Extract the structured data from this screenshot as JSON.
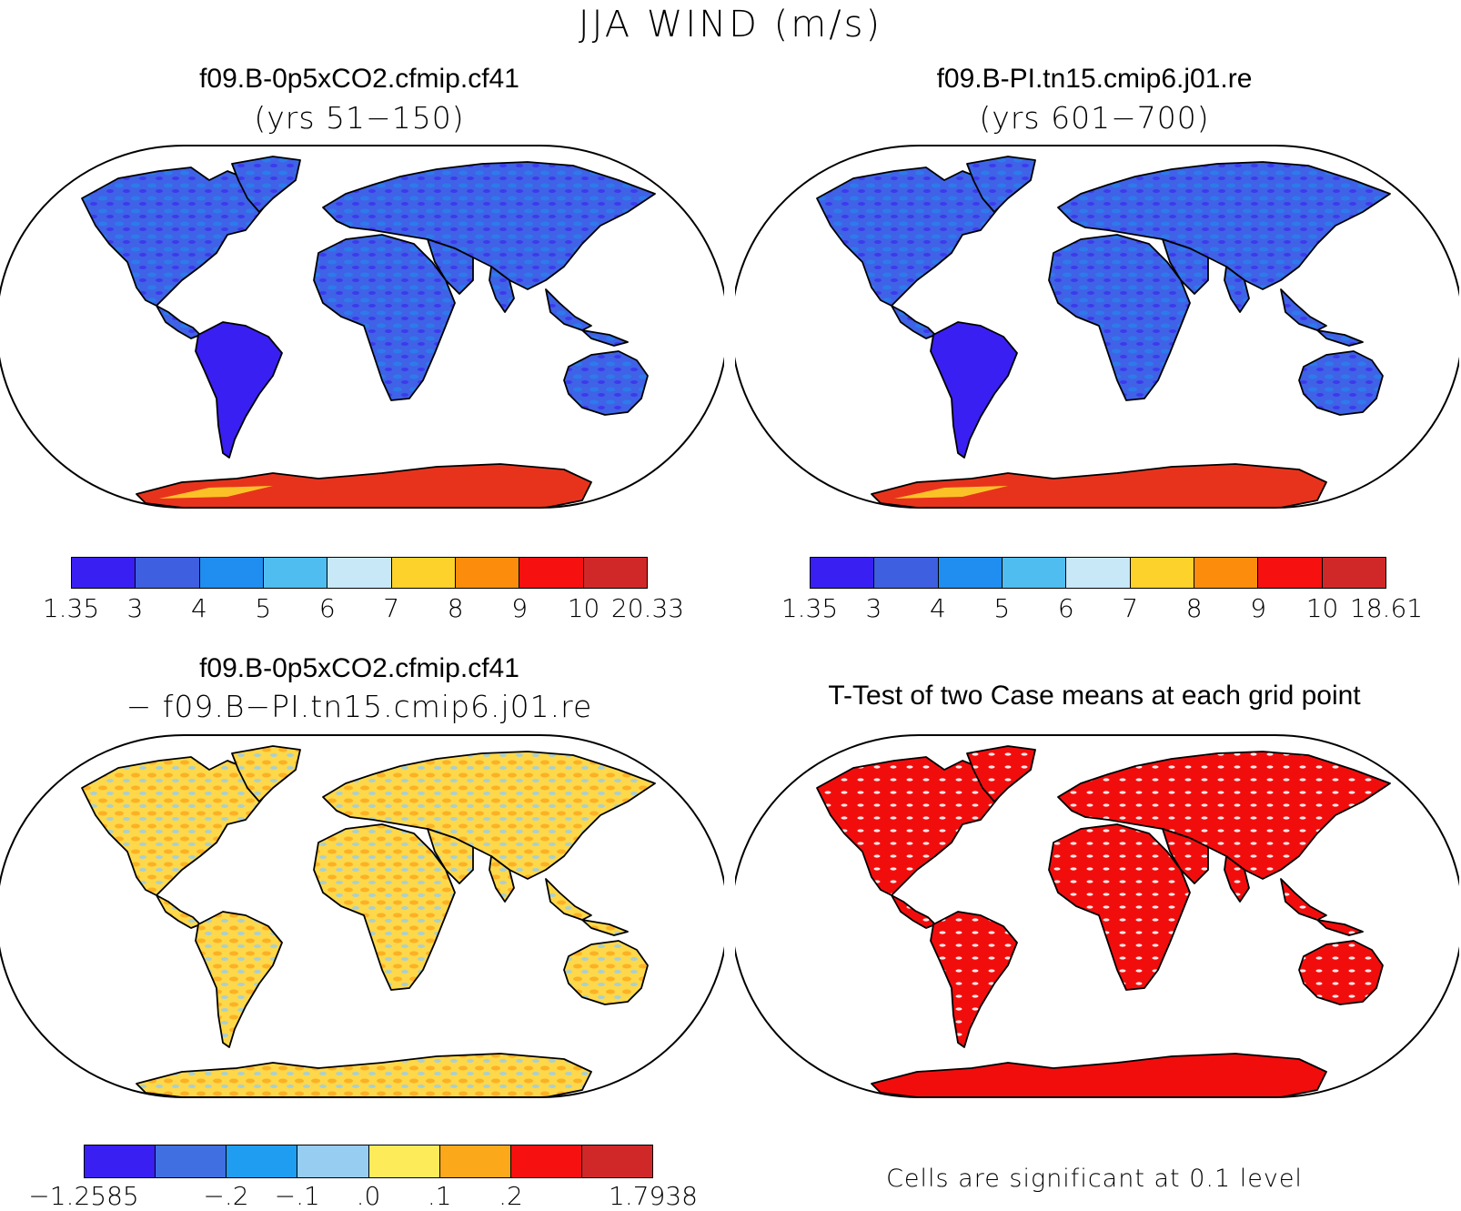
{
  "title": "JJA WIND (m/s)",
  "panels": [
    {
      "title": "f09.B-0p5xCO2.cfmip.cf41",
      "subtitle": "(yrs 51−150)",
      "scheme": "wind",
      "colorbar": {
        "colors": [
          "#3a1ff2",
          "#3d5fe0",
          "#1f8ef0",
          "#4fbdf0",
          "#c8e8f8",
          "#fdd22a",
          "#fb8c0c",
          "#f61010",
          "#d02828"
        ],
        "labels": [
          "1.35",
          "3",
          "4",
          "5",
          "6",
          "7",
          "8",
          "9",
          "10",
          "20.33"
        ]
      }
    },
    {
      "title": "f09.B-PI.tn15.cmip6.j01.re",
      "subtitle": "(yrs 601−700)",
      "scheme": "wind",
      "colorbar": {
        "colors": [
          "#3a1ff2",
          "#3d5fe0",
          "#1f8ef0",
          "#4fbdf0",
          "#c8e8f8",
          "#fdd22a",
          "#fb8c0c",
          "#f61010",
          "#d02828"
        ],
        "labels": [
          "1.35",
          "3",
          "4",
          "5",
          "6",
          "7",
          "8",
          "9",
          "10",
          "18.61"
        ]
      }
    },
    {
      "title": "f09.B-0p5xCO2.cfmip.cf41",
      "subtitle": "− f09.B−PI.tn15.cmip6.j01.re",
      "scheme": "diff",
      "colorbar": {
        "colors": [
          "#3a1ff2",
          "#3f6fe0",
          "#1f9df0",
          "#96cdf0",
          "#fdeb5a",
          "#fba81a",
          "#f61010",
          "#d02828"
        ],
        "labels": [
          "−1.2585",
          "",
          "−.2",
          "−.1",
          ".0",
          ".1",
          ".2",
          "",
          "1.7938"
        ]
      }
    },
    {
      "title": "T-Test of two Case means at each grid point",
      "subtitle": "",
      "scheme": "ttest",
      "note": "Cells are significant at 0.1 level"
    }
  ],
  "colors": {
    "land_wind": "#3f62e6",
    "land_wind_dark": "#3a1ff2",
    "antarctica": "#e8331c",
    "land_diff": "#fdd84a",
    "land_ttest": "#f20d0d"
  }
}
